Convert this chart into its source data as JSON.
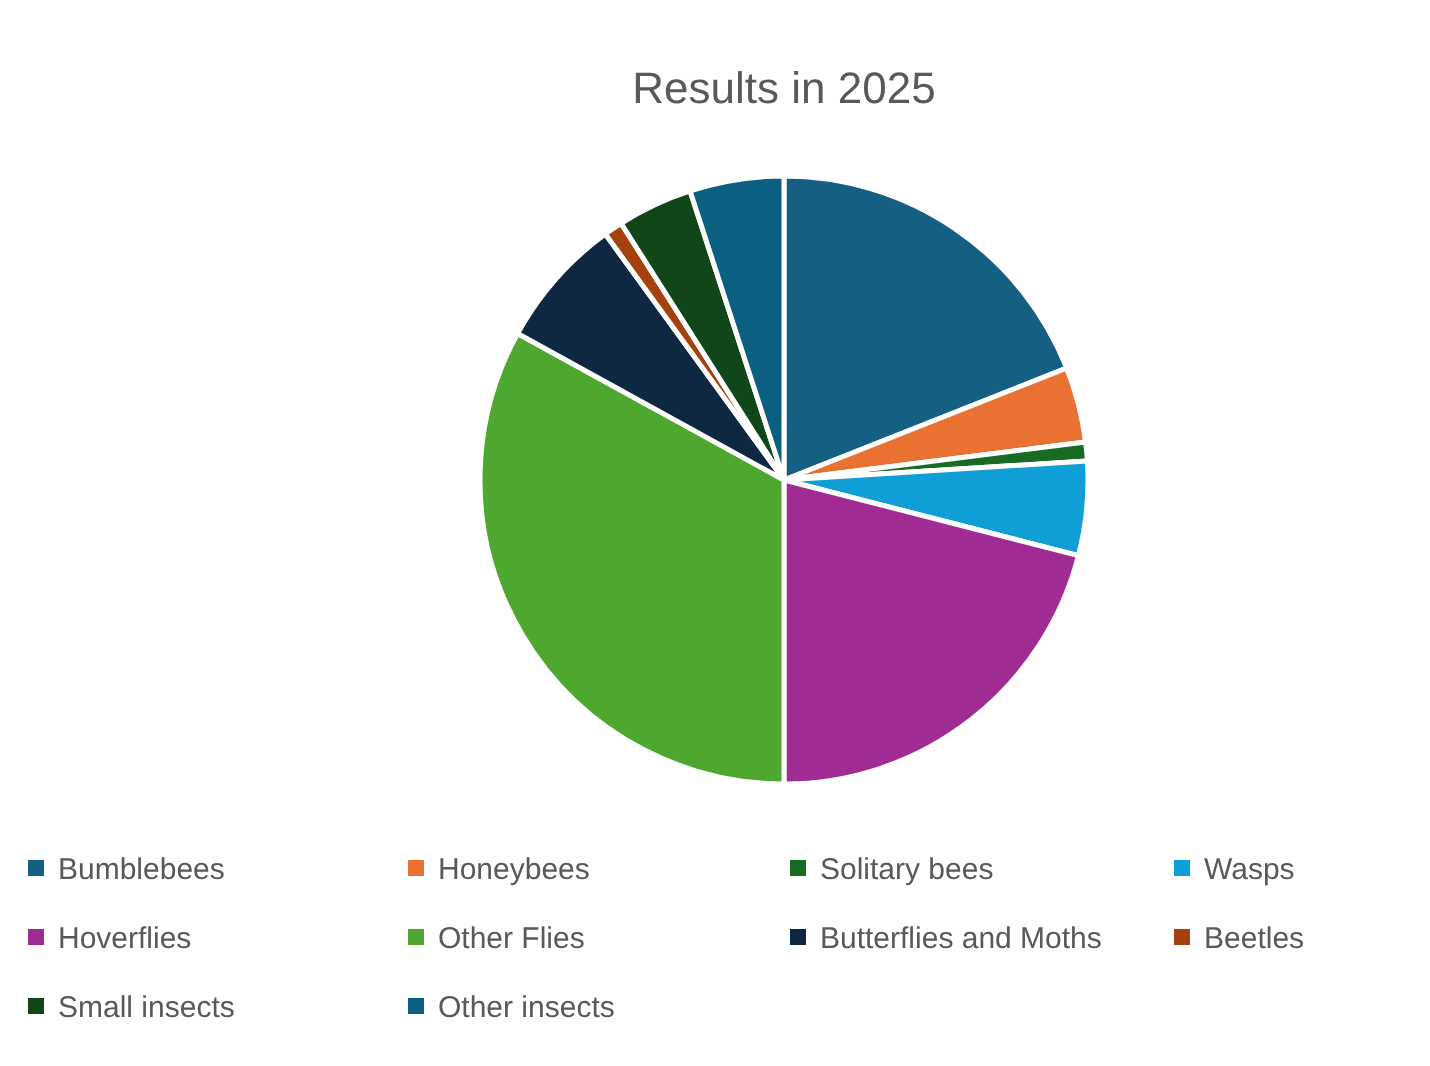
{
  "chart_data": {
    "type": "pie",
    "title": "Results in 2025",
    "categories": [
      "Bumblebees",
      "Honeybees",
      "Solitary bees",
      "Wasps",
      "Hoverflies",
      "Other Flies",
      "Butterflies and Moths",
      "Beetles",
      "Small insects",
      "Other insects"
    ],
    "values": [
      19,
      4,
      1,
      5,
      21,
      33,
      7,
      1,
      4,
      5
    ],
    "colors": [
      "#156082",
      "#e97132",
      "#196b24",
      "#0f9ed5",
      "#a02b93",
      "#4ea72e",
      "#0e2841",
      "#a5410e",
      "#10461a",
      "#0b5f80"
    ],
    "legend": "bottom"
  }
}
